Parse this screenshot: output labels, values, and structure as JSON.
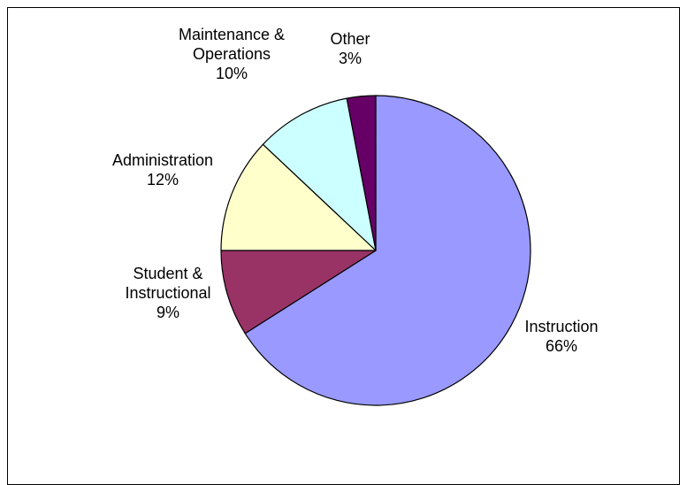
{
  "chart_data": {
    "type": "pie",
    "title": "",
    "start_angle_deg": 0,
    "direction": "clockwise",
    "legend": "none",
    "slices": [
      {
        "name": "Instruction",
        "label_lines": [
          "Instruction"
        ],
        "value": 66,
        "display": "66%",
        "color": "#9999ff"
      },
      {
        "name": "Student & Instructional",
        "label_lines": [
          "Student &",
          "Instructional"
        ],
        "value": 9,
        "display": "9%",
        "color": "#993366"
      },
      {
        "name": "Administration",
        "label_lines": [
          "Administration"
        ],
        "value": 12,
        "display": "12%",
        "color": "#ffffcc"
      },
      {
        "name": "Maintenance & Operations",
        "label_lines": [
          "Maintenance &",
          "Operations"
        ],
        "value": 10,
        "display": "10%",
        "color": "#ccffff"
      },
      {
        "name": "Other",
        "label_lines": [
          "Other"
        ],
        "value": 3,
        "display": "3%",
        "color": "#660066"
      }
    ]
  }
}
